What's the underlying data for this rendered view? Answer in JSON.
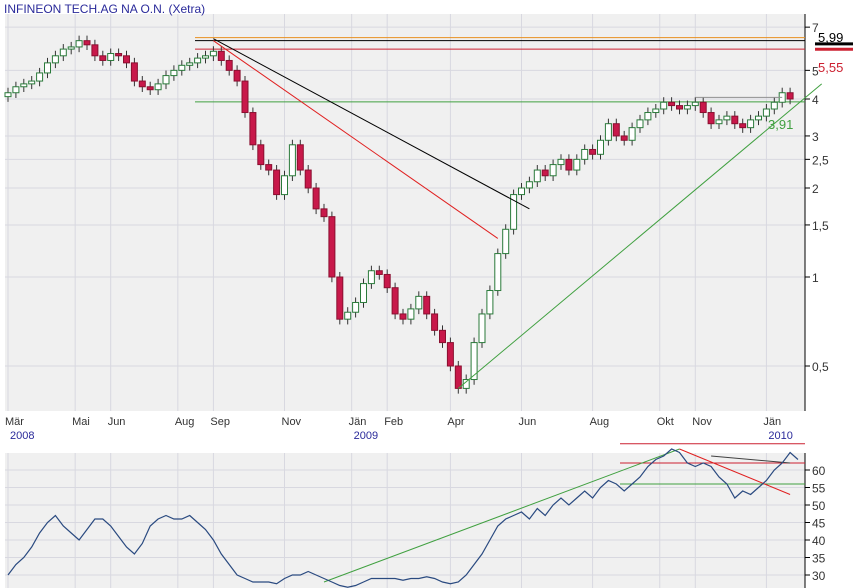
{
  "title": "INFINEON TECH.AG NA O.N. (Xetra)",
  "chart_data": [
    {
      "type": "candlestick",
      "title": "INFINEON TECH.AG NA O.N. (Xetra)",
      "yscale": "log",
      "ylim": [
        0.4,
        7.5
      ],
      "yticks": [
        0.5,
        1,
        1.5,
        2,
        2.5,
        3,
        4,
        5,
        7
      ],
      "ytick_labels": [
        "0,5",
        "1",
        "1,5",
        "2",
        "2,5",
        "3",
        "4",
        "5",
        "7"
      ],
      "xticks": [
        {
          "label": "Mär",
          "pos": 0
        },
        {
          "label": "Mai",
          "pos": 8.5
        },
        {
          "label": "Jun",
          "pos": 13
        },
        {
          "label": "Aug",
          "pos": 21.5
        },
        {
          "label": "Sep",
          "pos": 26
        },
        {
          "label": "Nov",
          "pos": 35
        },
        {
          "label": "Jän",
          "pos": 43.5
        },
        {
          "label": "Feb",
          "pos": 48
        },
        {
          "label": "Apr",
          "pos": 56
        },
        {
          "label": "Jun",
          "pos": 65
        },
        {
          "label": "Aug",
          "pos": 74
        },
        {
          "label": "Okt",
          "pos": 82.5
        },
        {
          "label": "Nov",
          "pos": 87
        },
        {
          "label": "Jän",
          "pos": 96
        }
      ],
      "years": [
        {
          "label": "2008",
          "pos": 0
        },
        {
          "label": "2009",
          "pos": 43.5
        },
        {
          "label": "2010",
          "pos": 96
        }
      ],
      "weekly_close": [
        4.2,
        4.4,
        4.5,
        4.6,
        4.9,
        5.3,
        5.6,
        5.9,
        6.0,
        6.3,
        6.1,
        5.6,
        5.4,
        5.7,
        5.6,
        5.3,
        4.6,
        4.4,
        4.3,
        4.5,
        4.8,
        5.0,
        5.2,
        5.3,
        5.5,
        5.6,
        5.8,
        5.4,
        5.0,
        4.6,
        3.6,
        2.8,
        2.4,
        2.3,
        1.9,
        2.2,
        2.8,
        2.3,
        2.0,
        1.7,
        1.6,
        1.0,
        0.72,
        0.76,
        0.82,
        0.95,
        1.05,
        1.02,
        0.92,
        0.75,
        0.72,
        0.78,
        0.86,
        0.75,
        0.66,
        0.6,
        0.5,
        0.42,
        0.45,
        0.6,
        0.75,
        0.9,
        1.2,
        1.45,
        1.9,
        2.0,
        2.1,
        2.3,
        2.2,
        2.4,
        2.5,
        2.3,
        2.5,
        2.7,
        2.6,
        2.9,
        3.3,
        3.0,
        2.9,
        3.2,
        3.4,
        3.6,
        3.7,
        3.9,
        3.8,
        3.7,
        3.8,
        3.9,
        3.6,
        3.3,
        3.4,
        3.5,
        3.3,
        3.2,
        3.4,
        3.5,
        3.7,
        3.9,
        4.2,
        4.0
      ],
      "hlines": [
        {
          "value": 6.45,
          "color": "#e89020"
        },
        {
          "value": 6.3,
          "color": "#000000"
        },
        {
          "value": 5.9,
          "color": "#cc2030"
        },
        {
          "value": 3.91,
          "color": "#40a040"
        }
      ],
      "markers": [
        {
          "label": "5,99",
          "value": 6.05,
          "color": "#000000"
        },
        {
          "label": "5,55",
          "value": 5.8,
          "color": "#cc2030"
        },
        {
          "label": "3,91",
          "value": 3.91,
          "color": "#40a040"
        }
      ],
      "trendlines": [
        {
          "from": [
            26,
            6.4
          ],
          "to": [
            66,
            1.7
          ],
          "color": "#000000"
        },
        {
          "from": [
            26,
            6.3
          ],
          "to": [
            62,
            1.35
          ],
          "color": "#e02020"
        },
        {
          "from": [
            57,
            0.42
          ],
          "to": [
            103,
            4.5
          ],
          "color": "#40a040"
        },
        {
          "from": [
            87,
            4.05
          ],
          "to": [
            98,
            4.05
          ],
          "color": "#909090"
        }
      ]
    },
    {
      "type": "line",
      "ylim": [
        27,
        70
      ],
      "yticks": [
        30,
        35,
        40,
        45,
        50,
        55,
        60
      ],
      "ytick_labels": [
        "30",
        "35",
        "40",
        "45",
        "50",
        "55",
        "60"
      ],
      "values": [
        30,
        33,
        35,
        38,
        42,
        45,
        47,
        44,
        42,
        40,
        43,
        46,
        46,
        44,
        41,
        38,
        36,
        39,
        44,
        46,
        47,
        46,
        46,
        47,
        45,
        43,
        40,
        36,
        33,
        30,
        29,
        28,
        28,
        28,
        27.5,
        29,
        30,
        30,
        31,
        30,
        29,
        28,
        27,
        26.5,
        27,
        28,
        29,
        29,
        29,
        29,
        28.5,
        29,
        29,
        29.5,
        29,
        28,
        27.5,
        28,
        30,
        33,
        36,
        40,
        44,
        46,
        47,
        48,
        46,
        49,
        47,
        50,
        52,
        50,
        52,
        54,
        52,
        55,
        57,
        56,
        54,
        56,
        58,
        61,
        63,
        64,
        66,
        65,
        62,
        61,
        62,
        61,
        58,
        56,
        52,
        54,
        53,
        55,
        57,
        60,
        62,
        65,
        63
      ],
      "hlines": [
        {
          "value": 67.5,
          "color": "#cc2030"
        },
        {
          "value": 62,
          "color": "#cc2030"
        },
        {
          "value": 56,
          "color": "#40a040"
        }
      ],
      "trendlines": [
        {
          "from": [
            40,
            28
          ],
          "to": [
            85,
            66
          ],
          "color": "#40a040"
        },
        {
          "from": [
            85,
            66
          ],
          "to": [
            99,
            53
          ],
          "color": "#e02020"
        },
        {
          "from": [
            89,
            64
          ],
          "to": [
            99,
            62
          ],
          "color": "#404040"
        }
      ]
    }
  ]
}
